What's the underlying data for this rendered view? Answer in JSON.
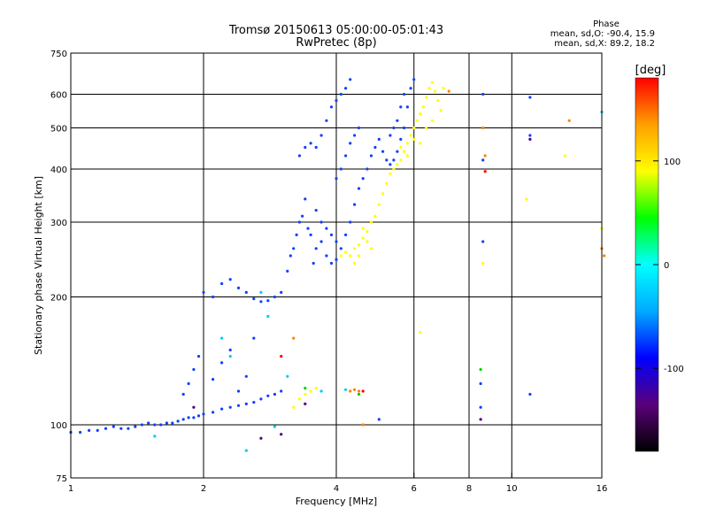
{
  "header": {
    "title": "Tromsø 20150613 05:00:00-05:01:43",
    "subtitle": "RwPretec (8p)"
  },
  "phase_info": {
    "heading": "Phase",
    "line_o": "mean, sd,O: -90.4, 15.9",
    "line_x": "mean, sd,X: 89.2, 18.2"
  },
  "chart_data": {
    "type": "scatter",
    "title": "Tromsø 20150613 05:00:00-05:01:43",
    "subtitle": "RwPretec (8p)",
    "xlabel": "Frequency [MHz]",
    "ylabel": "Stationary phase Virtual Height [km]",
    "x_scale": "log",
    "y_scale": "log",
    "xlim": [
      1,
      16
    ],
    "ylim": [
      75,
      750
    ],
    "x_ticks": [
      1,
      2,
      4,
      6,
      8,
      10,
      16
    ],
    "x_tick_labels": [
      "1",
      "2",
      "4",
      "6",
      "8",
      "10",
      "16"
    ],
    "y_ticks": [
      75,
      100,
      200,
      300,
      400,
      500,
      600,
      750
    ],
    "y_tick_labels": [
      "75",
      "100",
      "200",
      "300",
      "400",
      "500",
      "600",
      "750"
    ],
    "x_gridlines": [
      2,
      4,
      6,
      8,
      10
    ],
    "y_gridlines": [
      100,
      200,
      300,
      400,
      500,
      600
    ],
    "grid": true,
    "colorbar": {
      "label": "[deg]",
      "range": [
        -180,
        180
      ],
      "ticks": [
        100,
        0,
        -100
      ],
      "tick_labels": [
        "100",
        "0",
        "-100"
      ],
      "colors": [
        "#000000",
        "#5a007a",
        "#0000ff",
        "#00aaff",
        "#00ffff",
        "#00ff00",
        "#ffff00",
        "#ffa000",
        "#ff0000"
      ]
    },
    "series": [
      {
        "color": "#1040ff",
        "points": [
          [
            1.0,
            96
          ],
          [
            1.05,
            96
          ],
          [
            1.1,
            97
          ],
          [
            1.15,
            97
          ],
          [
            1.2,
            98
          ],
          [
            1.25,
            99
          ],
          [
            1.3,
            98
          ],
          [
            1.35,
            98
          ],
          [
            1.4,
            99
          ],
          [
            1.45,
            100
          ],
          [
            1.5,
            101
          ],
          [
            1.55,
            100
          ],
          [
            1.6,
            100
          ],
          [
            1.65,
            101
          ],
          [
            1.7,
            101
          ],
          [
            1.75,
            102
          ],
          [
            1.8,
            103
          ],
          [
            1.85,
            104
          ],
          [
            1.9,
            104
          ],
          [
            1.95,
            105
          ],
          [
            2.0,
            106
          ],
          [
            2.1,
            107
          ],
          [
            2.2,
            109
          ],
          [
            2.3,
            110
          ],
          [
            2.4,
            111
          ],
          [
            2.5,
            112
          ],
          [
            2.6,
            113
          ],
          [
            2.7,
            115
          ],
          [
            2.8,
            117
          ],
          [
            2.9,
            118
          ],
          [
            3.0,
            120
          ],
          [
            1.8,
            118
          ],
          [
            1.85,
            125
          ],
          [
            1.9,
            135
          ],
          [
            1.95,
            145
          ],
          [
            2.1,
            128
          ],
          [
            2.2,
            140
          ],
          [
            2.3,
            150
          ],
          [
            2.4,
            120
          ],
          [
            2.5,
            130
          ],
          [
            2.6,
            160
          ],
          [
            2.0,
            205
          ],
          [
            2.1,
            200
          ],
          [
            2.2,
            215
          ],
          [
            2.3,
            220
          ],
          [
            2.4,
            210
          ],
          [
            2.5,
            205
          ],
          [
            2.6,
            198
          ],
          [
            2.7,
            195
          ],
          [
            2.8,
            196
          ],
          [
            2.9,
            200
          ],
          [
            3.0,
            205
          ],
          [
            3.1,
            230
          ],
          [
            3.2,
            260
          ],
          [
            3.3,
            300
          ],
          [
            3.4,
            340
          ],
          [
            3.5,
            280
          ],
          [
            3.6,
            260
          ],
          [
            3.15,
            250
          ],
          [
            3.25,
            280
          ],
          [
            3.35,
            310
          ],
          [
            3.45,
            290
          ],
          [
            3.55,
            240
          ],
          [
            3.7,
            270
          ],
          [
            3.8,
            250
          ],
          [
            3.9,
            240
          ],
          [
            4.0,
            245
          ],
          [
            4.1,
            260
          ],
          [
            4.2,
            280
          ],
          [
            4.3,
            300
          ],
          [
            4.4,
            330
          ],
          [
            4.5,
            360
          ],
          [
            4.6,
            380
          ],
          [
            4.7,
            400
          ],
          [
            4.8,
            430
          ],
          [
            4.9,
            450
          ],
          [
            5.0,
            470
          ],
          [
            5.1,
            440
          ],
          [
            5.2,
            420
          ],
          [
            5.3,
            410
          ],
          [
            5.4,
            420
          ],
          [
            5.5,
            440
          ],
          [
            5.6,
            470
          ],
          [
            5.7,
            500
          ],
          [
            5.8,
            560
          ],
          [
            5.9,
            620
          ],
          [
            6.0,
            650
          ],
          [
            3.3,
            430
          ],
          [
            3.4,
            450
          ],
          [
            3.5,
            460
          ],
          [
            3.6,
            450
          ],
          [
            3.7,
            480
          ],
          [
            3.8,
            520
          ],
          [
            3.9,
            560
          ],
          [
            4.0,
            580
          ],
          [
            4.1,
            600
          ],
          [
            4.2,
            620
          ],
          [
            4.3,
            650
          ],
          [
            4.0,
            380
          ],
          [
            4.1,
            400
          ],
          [
            4.2,
            430
          ],
          [
            4.3,
            460
          ],
          [
            4.4,
            480
          ],
          [
            4.5,
            500
          ],
          [
            3.6,
            320
          ],
          [
            3.7,
            300
          ],
          [
            3.8,
            290
          ],
          [
            3.9,
            280
          ],
          [
            4.0,
            270
          ],
          [
            5.3,
            480
          ],
          [
            5.4,
            500
          ],
          [
            5.5,
            520
          ],
          [
            5.6,
            560
          ],
          [
            5.7,
            600
          ],
          [
            8.5,
            110
          ],
          [
            8.5,
            125
          ],
          [
            8.6,
            270
          ],
          [
            8.6,
            600
          ],
          [
            11.0,
            590
          ],
          [
            11.0,
            480
          ],
          [
            11.0,
            118
          ],
          [
            8.6,
            420
          ],
          [
            5.0,
            103
          ]
        ]
      },
      {
        "color": "#ffff00",
        "points": [
          [
            4.1,
            250
          ],
          [
            4.2,
            255
          ],
          [
            4.3,
            250
          ],
          [
            4.4,
            260
          ],
          [
            4.5,
            265
          ],
          [
            4.6,
            275
          ],
          [
            4.7,
            285
          ],
          [
            4.8,
            300
          ],
          [
            4.9,
            310
          ],
          [
            5.0,
            330
          ],
          [
            5.1,
            350
          ],
          [
            5.2,
            370
          ],
          [
            5.3,
            390
          ],
          [
            5.4,
            400
          ],
          [
            5.5,
            410
          ],
          [
            5.6,
            420
          ],
          [
            5.7,
            440
          ],
          [
            5.8,
            460
          ],
          [
            5.9,
            480
          ],
          [
            6.0,
            500
          ],
          [
            6.1,
            520
          ],
          [
            6.2,
            540
          ],
          [
            6.3,
            560
          ],
          [
            6.4,
            590
          ],
          [
            6.5,
            620
          ],
          [
            6.6,
            640
          ],
          [
            6.7,
            610
          ],
          [
            6.8,
            580
          ],
          [
            6.9,
            550
          ],
          [
            7.0,
            620
          ],
          [
            4.4,
            240
          ],
          [
            4.5,
            250
          ],
          [
            4.6,
            290
          ],
          [
            4.7,
            270
          ],
          [
            4.8,
            260
          ],
          [
            5.6,
            450
          ],
          [
            5.8,
            430
          ],
          [
            6.0,
            470
          ],
          [
            6.2,
            460
          ],
          [
            6.4,
            500
          ],
          [
            6.6,
            520
          ],
          [
            3.2,
            110
          ],
          [
            3.3,
            115
          ],
          [
            3.4,
            118
          ],
          [
            3.5,
            120
          ],
          [
            3.6,
            122
          ],
          [
            8.6,
            240
          ],
          [
            13.2,
            430
          ],
          [
            10.8,
            340
          ],
          [
            16.0,
            290
          ],
          [
            6.2,
            165
          ]
        ]
      },
      {
        "color": "#ff8000",
        "points": [
          [
            4.3,
            120
          ],
          [
            4.4,
            121
          ],
          [
            4.5,
            120
          ],
          [
            8.6,
            500
          ],
          [
            8.7,
            430
          ],
          [
            16.0,
            260
          ],
          [
            16.2,
            250
          ],
          [
            13.5,
            520
          ],
          [
            7.2,
            610
          ],
          [
            4.6,
            100
          ],
          [
            3.2,
            160
          ]
        ]
      },
      {
        "color": "#ff0000",
        "points": [
          [
            4.6,
            120
          ],
          [
            8.7,
            395
          ],
          [
            3.0,
            145
          ]
        ]
      },
      {
        "color": "#00c8ff",
        "points": [
          [
            1.55,
            94
          ],
          [
            2.5,
            87
          ],
          [
            2.7,
            205
          ],
          [
            2.8,
            180
          ],
          [
            3.1,
            130
          ],
          [
            3.7,
            120
          ],
          [
            4.2,
            121
          ],
          [
            2.2,
            160
          ],
          [
            2.3,
            145
          ],
          [
            16.0,
            545
          ],
          [
            2.9,
            99
          ]
        ]
      },
      {
        "color": "#00d000",
        "points": [
          [
            4.5,
            118
          ],
          [
            3.4,
            122
          ],
          [
            8.5,
            135
          ]
        ]
      },
      {
        "color": "#4b0082",
        "points": [
          [
            1.9,
            110
          ],
          [
            3.0,
            95
          ],
          [
            2.7,
            93
          ],
          [
            11.0,
            470
          ],
          [
            8.5,
            103
          ],
          [
            3.4,
            112
          ]
        ]
      }
    ]
  },
  "icons": {
    "legend_marker": "colorbar-swatch"
  }
}
